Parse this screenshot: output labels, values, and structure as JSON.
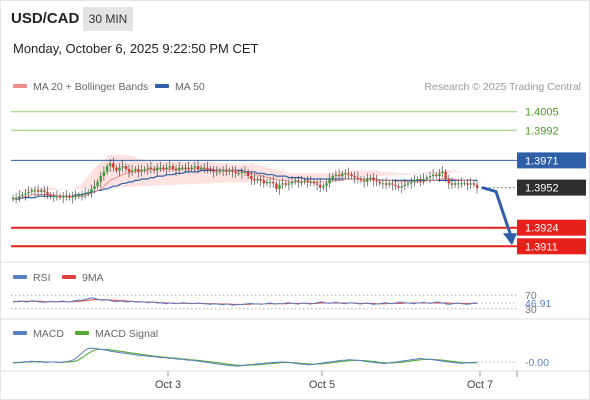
{
  "header": {
    "symbol": "USD/CAD",
    "timeframe": "30 MIN",
    "timestamp": "Monday, October 6, 2025 9:22:50 PM CET",
    "credit": "Research © 2025 Trading Central"
  },
  "colors": {
    "bull": "#3a9d3a",
    "bear": "#d9372f",
    "ma20": "#f08f87",
    "band_fill": "#fde2e1",
    "ma50": "#2f5fa8",
    "resistance": "#8fcf6e",
    "support": "#e8201c",
    "pivot": "#2f5fa8",
    "current": "#2e2e2e",
    "arrow": "#2f5fa8",
    "rsi": "#5b7fc7",
    "rsi_ma": "#e04040",
    "macd": "#5b7fc7",
    "macd_signal": "#55a832"
  },
  "chart_data": [
    {
      "type": "candlestick",
      "series": [
        {
          "name": "MA 20 + Bollinger Bands"
        },
        {
          "name": "MA 50"
        }
      ],
      "close": [
        1.3945,
        1.3945,
        1.3946,
        1.3947,
        1.3948,
        1.3949,
        1.395,
        1.395,
        1.3949,
        1.395,
        1.3949,
        1.3947,
        1.3946,
        1.3946,
        1.3946,
        1.3945,
        1.3946,
        1.3946,
        1.3945,
        1.3946,
        1.3946,
        1.3947,
        1.3947,
        1.3948,
        1.3949,
        1.3951,
        1.3953,
        1.3956,
        1.396,
        1.3963,
        1.3967,
        1.3969,
        1.3966,
        1.3964,
        1.3966,
        1.3967,
        1.3965,
        1.3963,
        1.3964,
        1.3965,
        1.3963,
        1.3964,
        1.3965,
        1.3966,
        1.3965,
        1.3964,
        1.3966,
        1.3966,
        1.3965,
        1.3966,
        1.3967,
        1.3965,
        1.3964,
        1.3966,
        1.3966,
        1.3966,
        1.3965,
        1.3966,
        1.3967,
        1.3965,
        1.3966,
        1.3966,
        1.3965,
        1.3964,
        1.3963,
        1.3963,
        1.3964,
        1.3964,
        1.3963,
        1.3964,
        1.3963,
        1.3962,
        1.3962,
        1.3963,
        1.3963,
        1.396,
        1.3958,
        1.3957,
        1.3958,
        1.3957,
        1.3955,
        1.3956,
        1.3956,
        1.3955,
        1.3951,
        1.3954,
        1.3955,
        1.3954,
        1.3955,
        1.3956,
        1.3957,
        1.3956,
        1.3956,
        1.3957,
        1.3956,
        1.3956,
        1.3955,
        1.3954,
        1.3952,
        1.3953,
        1.3955,
        1.3958,
        1.396,
        1.3961,
        1.396,
        1.3962,
        1.3962,
        1.3961,
        1.396,
        1.3959,
        1.3958,
        1.3957,
        1.3956,
        1.3958,
        1.3959,
        1.3957,
        1.3956,
        1.3955,
        1.3955,
        1.3954,
        1.3955,
        1.3954,
        1.3953,
        1.3952,
        1.3953,
        1.3954,
        1.3955,
        1.3956,
        1.3957,
        1.3958,
        1.3957,
        1.3958,
        1.3959,
        1.396,
        1.3961,
        1.396,
        1.3962,
        1.3963,
        1.3958,
        1.3955,
        1.3954,
        1.3955,
        1.3955,
        1.3955,
        1.3955,
        1.3954,
        1.3955,
        1.3954,
        1.3952
      ],
      "ma20": [
        1.3944,
        1.3944,
        1.3945,
        1.3945,
        1.3946,
        1.3946,
        1.3947,
        1.3947,
        1.3947,
        1.3947,
        1.3947,
        1.3947,
        1.3947,
        1.3947,
        1.3946,
        1.3946,
        1.3946,
        1.3946,
        1.3946,
        1.3946,
        1.3946,
        1.3946,
        1.3946,
        1.3946,
        1.3947,
        1.3948,
        1.3949,
        1.395,
        1.3951,
        1.3953,
        1.3955,
        1.3957,
        1.3958,
        1.3959,
        1.396,
        1.3961,
        1.3962,
        1.3962,
        1.3963,
        1.3963,
        1.3963,
        1.3964,
        1.3964,
        1.3964,
        1.3965,
        1.3965,
        1.3965,
        1.3965,
        1.3965,
        1.3965,
        1.3965,
        1.3965,
        1.3965,
        1.3965,
        1.3965,
        1.3965,
        1.3965,
        1.3965,
        1.3965,
        1.3965,
        1.3965,
        1.3965,
        1.3965,
        1.3965,
        1.3965,
        1.3964,
        1.3964,
        1.3964,
        1.3964,
        1.3964,
        1.3964,
        1.3964,
        1.3963,
        1.3963,
        1.3963,
        1.3962,
        1.3962,
        1.3961,
        1.3961,
        1.396,
        1.396,
        1.3959,
        1.3959,
        1.3958,
        1.3958,
        1.3957,
        1.3957,
        1.3957,
        1.3956,
        1.3956,
        1.3956,
        1.3956,
        1.3956,
        1.3956,
        1.3956,
        1.3956,
        1.3956,
        1.3956,
        1.3956,
        1.3956,
        1.3956,
        1.3956,
        1.3957,
        1.3957,
        1.3957,
        1.3957,
        1.3958,
        1.3958,
        1.3958,
        1.3958,
        1.3958,
        1.3958,
        1.3958,
        1.3958,
        1.3958,
        1.3958,
        1.3958,
        1.3957,
        1.3957,
        1.3957,
        1.3957,
        1.3957,
        1.3956,
        1.3956,
        1.3956,
        1.3956,
        1.3956,
        1.3956,
        1.3956,
        1.3956,
        1.3956,
        1.3956,
        1.3957,
        1.3957,
        1.3957,
        1.3957,
        1.3958,
        1.3958,
        1.3958,
        1.3958,
        1.3958,
        1.3958,
        1.3957,
        1.3957,
        1.3957,
        1.3957,
        1.3957,
        1.3957
      ],
      "bb_width": [
        0.0005,
        0.0005,
        0.0005,
        0.0005,
        0.0005,
        0.0005,
        0.0005,
        0.0005,
        0.0005,
        0.0005,
        0.0005,
        0.0005,
        0.0005,
        0.0005,
        0.0005,
        0.0005,
        0.0005,
        0.0005,
        0.0005,
        0.0005,
        0.0006,
        0.0007,
        0.0009,
        0.0011,
        0.0013,
        0.0015,
        0.0017,
        0.0018,
        0.0019,
        0.0019,
        0.0019,
        0.0018,
        0.0017,
        0.0016,
        0.0015,
        0.0014,
        0.0013,
        0.0012,
        0.0011,
        0.001,
        0.0009,
        0.0008,
        0.0007,
        0.0006,
        0.0006,
        0.0005,
        0.0005,
        0.0005,
        0.0005,
        0.0005,
        0.0005,
        0.0005,
        0.0005,
        0.0005,
        0.0005,
        0.0005,
        0.0005,
        0.0005,
        0.0005,
        0.0005,
        0.0005,
        0.0005,
        0.0005,
        0.0005,
        0.0005,
        0.0005,
        0.0005,
        0.0005,
        0.0005,
        0.0005,
        0.0005,
        0.0005,
        0.0005,
        0.0005,
        0.0006,
        0.0006,
        0.0007,
        0.0007,
        0.0007,
        0.0007,
        0.0007,
        0.0007,
        0.0007,
        0.0007,
        0.0007,
        0.0007,
        0.0007,
        0.0006,
        0.0006,
        0.0006,
        0.0006,
        0.0006,
        0.0006,
        0.0006,
        0.0006,
        0.0006,
        0.0006,
        0.0006,
        0.0006,
        0.0006,
        0.0006,
        0.0006,
        0.0006,
        0.0006,
        0.0006,
        0.0006,
        0.0006,
        0.0006,
        0.0006,
        0.0006,
        0.0006,
        0.0006,
        0.0006,
        0.0006,
        0.0006,
        0.0006,
        0.0006,
        0.0006,
        0.0006,
        0.0006,
        0.0006,
        0.0006,
        0.0006,
        0.0006,
        0.0006,
        0.0006,
        0.0006,
        0.0006,
        0.0006,
        0.0006,
        0.0006,
        0.0006,
        0.0006,
        0.0006,
        0.0006,
        0.0006,
        0.0006,
        0.0006,
        0.0006,
        0.0006,
        0.0006,
        0.0006,
        0.0006,
        0.0006,
        0.0006,
        0.0006,
        0.0006,
        0.0006,
        0.0006,
        0.0006
      ],
      "ma50": [
        1.3944,
        1.3944,
        1.3944,
        1.3945,
        1.3945,
        1.3945,
        1.3945,
        1.3945,
        1.3946,
        1.3946,
        1.3946,
        1.3946,
        1.3946,
        1.3946,
        1.3946,
        1.3946,
        1.3946,
        1.3946,
        1.3946,
        1.3946,
        1.3947,
        1.3947,
        1.3947,
        1.3948,
        1.3948,
        1.3949,
        1.3949,
        1.395,
        1.395,
        1.3951,
        1.3951,
        1.3952,
        1.3953,
        1.3953,
        1.3954,
        1.3955,
        1.3955,
        1.3956,
        1.3956,
        1.3957,
        1.3957,
        1.3958,
        1.3958,
        1.3958,
        1.3959,
        1.3959,
        1.396,
        1.396,
        1.396,
        1.3961,
        1.3961,
        1.3961,
        1.3962,
        1.3962,
        1.3962,
        1.3963,
        1.3963,
        1.3963,
        1.3963,
        1.3963,
        1.3964,
        1.3964,
        1.3964,
        1.3964,
        1.3964,
        1.3964,
        1.3964,
        1.3964,
        1.3964,
        1.3964,
        1.3964,
        1.3964,
        1.3964,
        1.3964,
        1.3963,
        1.3963,
        1.3963,
        1.3963,
        1.3962,
        1.3962,
        1.3962,
        1.3961,
        1.3961,
        1.3961,
        1.396,
        1.396,
        1.396,
        1.396,
        1.3959,
        1.3959,
        1.3959,
        1.3959,
        1.3959,
        1.3958,
        1.3958,
        1.3958,
        1.3958,
        1.3958,
        1.3958,
        1.3958,
        1.3958,
        1.3958,
        1.3958,
        1.3958,
        1.3958,
        1.3958,
        1.3958,
        1.3958,
        1.3958,
        1.3958,
        1.3958,
        1.3958,
        1.3958,
        1.3958,
        1.3958,
        1.3958,
        1.3958,
        1.3957,
        1.3957,
        1.3957,
        1.3957,
        1.3957,
        1.3957,
        1.3957,
        1.3957,
        1.3957,
        1.3957,
        1.3957,
        1.3957,
        1.3957,
        1.3957,
        1.3957,
        1.3957,
        1.3957,
        1.3957,
        1.3957,
        1.3957,
        1.3957,
        1.3957,
        1.3957,
        1.3957,
        1.3957,
        1.3957,
        1.3957,
        1.3957,
        1.3957,
        1.3957,
        1.3957,
        1.3957
      ],
      "levels": [
        {
          "value": 1.4005,
          "label": "1.4005",
          "kind": "resistance"
        },
        {
          "value": 1.3992,
          "label": "1.3992",
          "kind": "resistance"
        },
        {
          "value": 1.3971,
          "label": "1.3971",
          "kind": "pivot"
        },
        {
          "value": 1.3952,
          "label": "1.3952",
          "kind": "current"
        },
        {
          "value": 1.3924,
          "label": "1.3924",
          "kind": "support"
        },
        {
          "value": 1.3911,
          "label": "1.3911",
          "kind": "support"
        }
      ],
      "projection": {
        "from": 1.3952,
        "to": 1.3911
      },
      "y_range": [
        1.39,
        1.4016
      ]
    },
    {
      "type": "line",
      "series": [
        {
          "name": "RSI"
        },
        {
          "name": "9MA"
        }
      ],
      "y_ticks": [
        "70",
        "30"
      ],
      "current_label": "46.91",
      "rsi": [
        52,
        51,
        53,
        52,
        50,
        51,
        54,
        52,
        51,
        50,
        49,
        50,
        52,
        51,
        50,
        52,
        53,
        51,
        50,
        52,
        54,
        56,
        55,
        58,
        60,
        62,
        61,
        58,
        56,
        55,
        57,
        54,
        52,
        51,
        53,
        52,
        50,
        51,
        52,
        50,
        49,
        51,
        50,
        48,
        50,
        49,
        47,
        48,
        46,
        45,
        47,
        46,
        45,
        46,
        48,
        47,
        46,
        45,
        46,
        47,
        46,
        45,
        44,
        43,
        45,
        44,
        43,
        42,
        44,
        43,
        41,
        42,
        43,
        42,
        44,
        45,
        46,
        44,
        45,
        43,
        44,
        46,
        47,
        45,
        44,
        46,
        45,
        47,
        48,
        46,
        45,
        44,
        46,
        47,
        45,
        44,
        46,
        48,
        50,
        49,
        47,
        46,
        48,
        49,
        47,
        46,
        45,
        47,
        48,
        46,
        45,
        44,
        46,
        47,
        45,
        43,
        44,
        45,
        47,
        48,
        46,
        45,
        47,
        49,
        50,
        48,
        47,
        46,
        45,
        47,
        48,
        49,
        47,
        46,
        48,
        50,
        49,
        47,
        45,
        43,
        44,
        46,
        47,
        45,
        44,
        43,
        45,
        47,
        46.91
      ],
      "rsi_ma": [
        51,
        51,
        51,
        52,
        52,
        52,
        52,
        52,
        52,
        52,
        51,
        51,
        51,
        51,
        51,
        51,
        51,
        51,
        51,
        51,
        52,
        52,
        53,
        54,
        55,
        56,
        57,
        57,
        57,
        57,
        57,
        56,
        55,
        55,
        54,
        54,
        53,
        52,
        52,
        51,
        51,
        50,
        50,
        50,
        49,
        49,
        49,
        48,
        48,
        47,
        47,
        47,
        46,
        46,
        46,
        46,
        46,
        46,
        46,
        46,
        46,
        46,
        45,
        45,
        45,
        45,
        44,
        44,
        44,
        44,
        43,
        43,
        43,
        43,
        43,
        43,
        44,
        44,
        44,
        44,
        44,
        45,
        45,
        45,
        45,
        45,
        45,
        45,
        46,
        46,
        46,
        46,
        46,
        46,
        46,
        46,
        46,
        46,
        47,
        47,
        47,
        47,
        47,
        47,
        47,
        47,
        47,
        47,
        47,
        47,
        46,
        46,
        46,
        46,
        46,
        46,
        45,
        45,
        45,
        45,
        46,
        46,
        46,
        46,
        46,
        47,
        47,
        47,
        47,
        47,
        47,
        47,
        47,
        47,
        47,
        47,
        47,
        47,
        47,
        47,
        46,
        46,
        46,
        46,
        46,
        46,
        46,
        46,
        46
      ]
    },
    {
      "type": "line",
      "series": [
        {
          "name": "MACD"
        },
        {
          "name": "MACD Signal"
        }
      ],
      "current_label": "-0.00",
      "macd": [
        -0.1,
        -0.1,
        -0.05,
        0,
        0.05,
        0.05,
        0.1,
        0.05,
        0,
        0,
        -0.05,
        -0.05,
        0,
        0,
        -0.05,
        -0.05,
        0,
        0.05,
        0.1,
        0.2,
        0.4,
        0.7,
        1.0,
        1.3,
        1.5,
        1.55,
        1.5,
        1.45,
        1.4,
        1.35,
        1.3,
        1.2,
        1.15,
        1.1,
        1.05,
        1.0,
        0.95,
        0.9,
        0.85,
        0.8,
        0.75,
        0.7,
        0.7,
        0.65,
        0.6,
        0.6,
        0.55,
        0.5,
        0.5,
        0.45,
        0.4,
        0.4,
        0.35,
        0.3,
        0.3,
        0.25,
        0.2,
        0.2,
        0.15,
        0.1,
        0.05,
        0,
        -0.05,
        -0.1,
        -0.15,
        -0.2,
        -0.25,
        -0.3,
        -0.35,
        -0.4,
        -0.4,
        -0.45,
        -0.45,
        -0.4,
        -0.35,
        -0.3,
        -0.3,
        -0.25,
        -0.2,
        -0.2,
        -0.15,
        -0.1,
        -0.1,
        -0.05,
        -0.05,
        0,
        0,
        0,
        -0.05,
        -0.1,
        -0.15,
        -0.2,
        -0.25,
        -0.25,
        -0.3,
        -0.3,
        -0.25,
        -0.2,
        -0.15,
        -0.1,
        -0.05,
        0,
        0.05,
        0.1,
        0.15,
        0.2,
        0.2,
        0.25,
        0.25,
        0.2,
        0.2,
        0.15,
        0.1,
        0.05,
        0,
        -0.05,
        -0.1,
        -0.1,
        -0.15,
        -0.15,
        -0.1,
        -0.05,
        0,
        0.05,
        0.1,
        0.15,
        0.2,
        0.25,
        0.3,
        0.35,
        0.4,
        0.35,
        0.3,
        0.3,
        0.25,
        0.2,
        0.15,
        0.1,
        0.05,
        0,
        -0.05,
        -0.1,
        -0.1,
        -0.15,
        -0.1,
        -0.1,
        -0.05,
        -0.05,
        -0.05
      ],
      "macd_signal": [
        -0.05,
        -0.05,
        -0.05,
        -0.05,
        0,
        0,
        0,
        0.05,
        0.05,
        0.05,
        0,
        0,
        0,
        0,
        0,
        -0.05,
        -0.05,
        0,
        0,
        0.05,
        0.1,
        0.25,
        0.45,
        0.7,
        0.95,
        1.15,
        1.3,
        1.4,
        1.4,
        1.4,
        1.38,
        1.35,
        1.3,
        1.25,
        1.2,
        1.15,
        1.1,
        1.05,
        1.0,
        0.95,
        0.9,
        0.85,
        0.8,
        0.75,
        0.7,
        0.66,
        0.62,
        0.58,
        0.55,
        0.52,
        0.48,
        0.45,
        0.42,
        0.38,
        0.35,
        0.32,
        0.28,
        0.25,
        0.22,
        0.18,
        0.14,
        0.1,
        0.06,
        0.02,
        -0.02,
        -0.06,
        -0.1,
        -0.15,
        -0.2,
        -0.25,
        -0.3,
        -0.33,
        -0.36,
        -0.38,
        -0.38,
        -0.36,
        -0.34,
        -0.32,
        -0.3,
        -0.27,
        -0.24,
        -0.21,
        -0.18,
        -0.15,
        -0.12,
        -0.09,
        -0.06,
        -0.04,
        -0.04,
        -0.06,
        -0.09,
        -0.12,
        -0.15,
        -0.18,
        -0.21,
        -0.23,
        -0.24,
        -0.23,
        -0.21,
        -0.18,
        -0.14,
        -0.1,
        -0.06,
        -0.02,
        0.02,
        0.06,
        0.1,
        0.13,
        0.16,
        0.18,
        0.18,
        0.17,
        0.15,
        0.12,
        0.09,
        0.05,
        0.01,
        -0.03,
        -0.06,
        -0.09,
        -0.1,
        -0.1,
        -0.08,
        -0.05,
        -0.02,
        0.02,
        0.06,
        0.1,
        0.15,
        0.2,
        0.25,
        0.28,
        0.29,
        0.29,
        0.28,
        0.26,
        0.23,
        0.2,
        0.16,
        0.12,
        0.08,
        0.04,
        0,
        -0.03,
        -0.06,
        -0.08,
        -0.09,
        -0.09,
        -0.08
      ]
    }
  ],
  "x_axis": {
    "labels": [
      "Oct 3",
      "Oct 5",
      "Oct 7"
    ]
  }
}
